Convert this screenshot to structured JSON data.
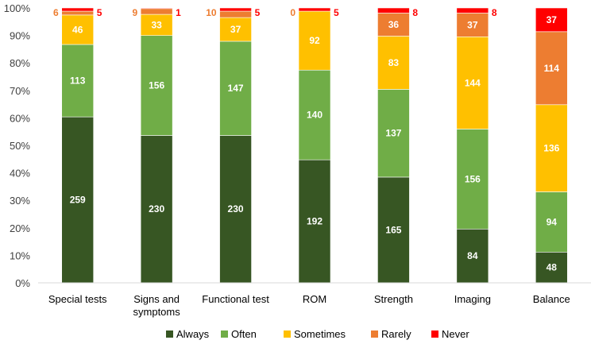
{
  "chart_data": {
    "type": "bar",
    "stacked": true,
    "normalized": true,
    "categories": [
      "Special tests",
      "Signs and symptoms",
      "Functional test",
      "ROM",
      "Strength",
      "Imaging",
      "Balance"
    ],
    "category_lines": [
      [
        "Special tests"
      ],
      [
        "Signs and",
        "symptoms"
      ],
      [
        "Functional test"
      ],
      [
        "ROM"
      ],
      [
        "Strength"
      ],
      [
        "Imaging"
      ],
      [
        "Balance"
      ]
    ],
    "series": [
      {
        "name": "Always",
        "color": "#375623",
        "values": [
          259,
          230,
          230,
          192,
          165,
          84,
          48
        ]
      },
      {
        "name": "Often",
        "color": "#70AD47",
        "values": [
          113,
          156,
          147,
          140,
          137,
          156,
          94
        ]
      },
      {
        "name": "Sometimes",
        "color": "#FFC000",
        "values": [
          46,
          33,
          37,
          92,
          83,
          144,
          136
        ]
      },
      {
        "name": "Rarely",
        "color": "#ED7D31",
        "values": [
          6,
          9,
          10,
          0,
          36,
          37,
          114
        ]
      },
      {
        "name": "Never",
        "color": "#FF0000",
        "values": [
          5,
          1,
          5,
          5,
          8,
          8,
          37
        ]
      }
    ],
    "y_ticks": [
      "0%",
      "10%",
      "20%",
      "30%",
      "40%",
      "50%",
      "60%",
      "70%",
      "80%",
      "90%",
      "100%"
    ],
    "ylim": [
      0,
      100
    ],
    "ylabel": "",
    "xlabel": "",
    "title": "",
    "grid": false,
    "legend": "bottom"
  }
}
